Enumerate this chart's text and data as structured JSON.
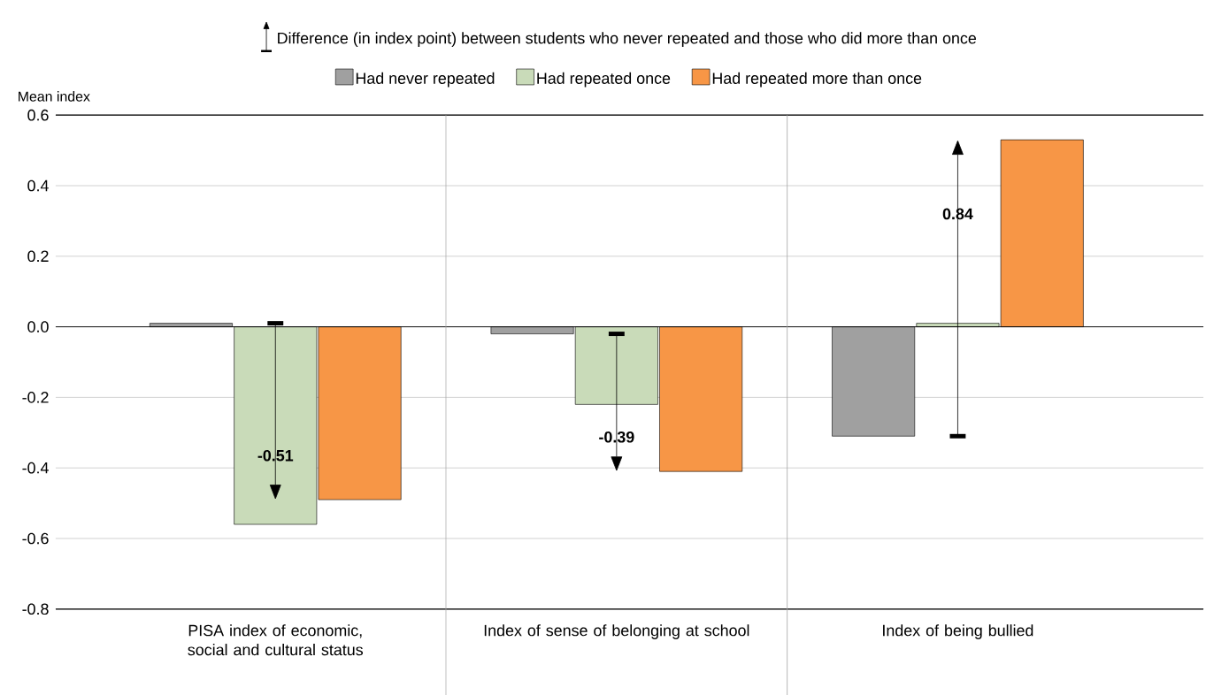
{
  "chart_data": {
    "type": "bar",
    "categories": [
      "PISA index of economic, social and cultural status",
      "Index of sense of belonging at school",
      "Index of being bullied"
    ],
    "series": [
      {
        "name": "Had never repeated",
        "color": "#a0a0a0",
        "values": [
          0.01,
          -0.02,
          -0.31
        ]
      },
      {
        "name": "Had repeated once",
        "color": "#c9dbb9",
        "values": [
          -0.56,
          -0.22,
          0.01
        ]
      },
      {
        "name": "Had repeated more than once",
        "color": "#f79646",
        "values": [
          -0.49,
          -0.41,
          0.53
        ]
      }
    ],
    "ylabel": "Mean index",
    "ylim": [
      -0.8,
      0.6
    ],
    "yticks": [
      {
        "value": -0.8,
        "label": "-0.8"
      },
      {
        "value": -0.6,
        "label": "-0.6"
      },
      {
        "value": -0.4,
        "label": "-0.4"
      },
      {
        "value": -0.2,
        "label": "-0.2"
      },
      {
        "value": 0,
        "label": "0.0"
      },
      {
        "value": 0.2,
        "label": "0.2"
      },
      {
        "value": 0.4,
        "label": "0.4"
      },
      {
        "value": 0.6,
        "label": "0.6"
      }
    ],
    "grid": true,
    "legend": "top",
    "annotations": [
      "Difference (in index point) between students who never repeated and those who did more than once",
      "-0.51",
      "-0.39",
      "0.84"
    ]
  }
}
